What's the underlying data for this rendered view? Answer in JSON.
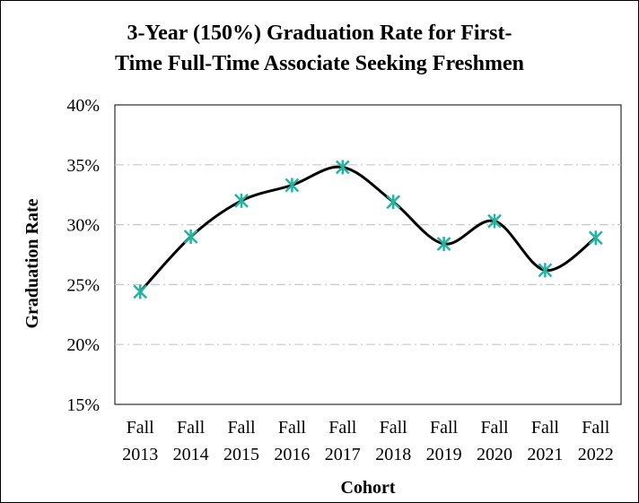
{
  "chart_data": {
    "type": "line",
    "title_line1": "3-Year (150%) Graduation Rate for First-",
    "title_line2": "Time Full-Time Associate Seeking Freshmen",
    "xlabel": "Cohort",
    "ylabel": "Graduation Rate",
    "categories": [
      [
        "Fall",
        "2013"
      ],
      [
        "Fall",
        "2014"
      ],
      [
        "Fall",
        "2015"
      ],
      [
        "Fall",
        "2016"
      ],
      [
        "Fall",
        "2017"
      ],
      [
        "Fall",
        "2018"
      ],
      [
        "Fall",
        "2019"
      ],
      [
        "Fall",
        "2020"
      ],
      [
        "Fall",
        "2021"
      ],
      [
        "Fall",
        "2022"
      ]
    ],
    "values": [
      24.4,
      29.0,
      32.0,
      33.3,
      34.8,
      31.9,
      28.4,
      30.3,
      26.2,
      28.9
    ],
    "ylim": [
      15,
      40
    ],
    "yticks": [
      "15%",
      "20%",
      "25%",
      "30%",
      "35%",
      "40%"
    ],
    "grid": "horizontal dash-dot",
    "line_color": "#000000",
    "marker_color": "#1fb5a2",
    "smooth": true
  }
}
